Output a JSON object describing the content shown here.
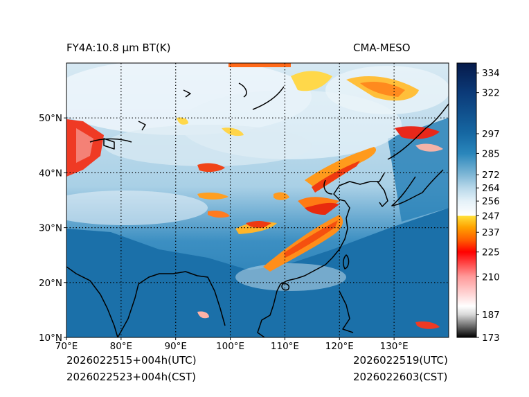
{
  "header": {
    "left_title": "FY4A:10.8 µm BT(K)",
    "right_title": "CMA-MESO"
  },
  "footer": {
    "init_utc": "2026022515+004h(UTC)",
    "init_cst": "2026022523+004h(CST)",
    "valid_utc": "2026022519(UTC)",
    "valid_cst": "2026022603(CST)"
  },
  "map": {
    "lon_range": [
      70,
      140
    ],
    "lat_range": [
      10,
      60
    ],
    "lon_ticks": [
      70,
      80,
      90,
      100,
      110,
      120,
      130
    ],
    "lon_labels": [
      "70°E",
      "80°E",
      "90°E",
      "100°E",
      "110°E",
      "120°E",
      "130°E"
    ],
    "lat_ticks": [
      10,
      20,
      30,
      40,
      50
    ],
    "lat_labels": [
      "10°N",
      "20°N",
      "30°N",
      "40°N",
      "50°N"
    ],
    "gridlines": "dotted",
    "variable": "brightness temperature (K)"
  },
  "colorbar": {
    "min": 173,
    "max": 340,
    "ticks": [
      173,
      187,
      210,
      225,
      237,
      247,
      256,
      264,
      272,
      285,
      297,
      322,
      334
    ],
    "stops": [
      {
        "value": 173,
        "color": "#000000"
      },
      {
        "value": 187,
        "color": "#d9d9d9"
      },
      {
        "value": 192,
        "color": "#ffffff"
      },
      {
        "value": 210,
        "color": "#ff9a9a"
      },
      {
        "value": 225,
        "color": "#ff0000"
      },
      {
        "value": 232,
        "color": "#ff5a00"
      },
      {
        "value": 240,
        "color": "#ffa200"
      },
      {
        "value": 247,
        "color": "#ffe13a"
      },
      {
        "value": 247.1,
        "color": "#ffffff"
      },
      {
        "value": 256,
        "color": "#e4f1f8"
      },
      {
        "value": 264,
        "color": "#b8d8ea"
      },
      {
        "value": 272,
        "color": "#7fb7d6"
      },
      {
        "value": 285,
        "color": "#2a86bb"
      },
      {
        "value": 297,
        "color": "#1668a3"
      },
      {
        "value": 322,
        "color": "#0b3a78"
      },
      {
        "value": 340,
        "color": "#061a4a"
      }
    ]
  },
  "colors": {
    "ocean": "#1a6fa8",
    "cloud_high": "#e9f3f9",
    "cloud_mid": "#a9cfe4",
    "convective_orange": "#ff8c1a",
    "convective_red": "#f02a10",
    "convective_yellow": "#ffd84a",
    "coast": "#000000"
  }
}
